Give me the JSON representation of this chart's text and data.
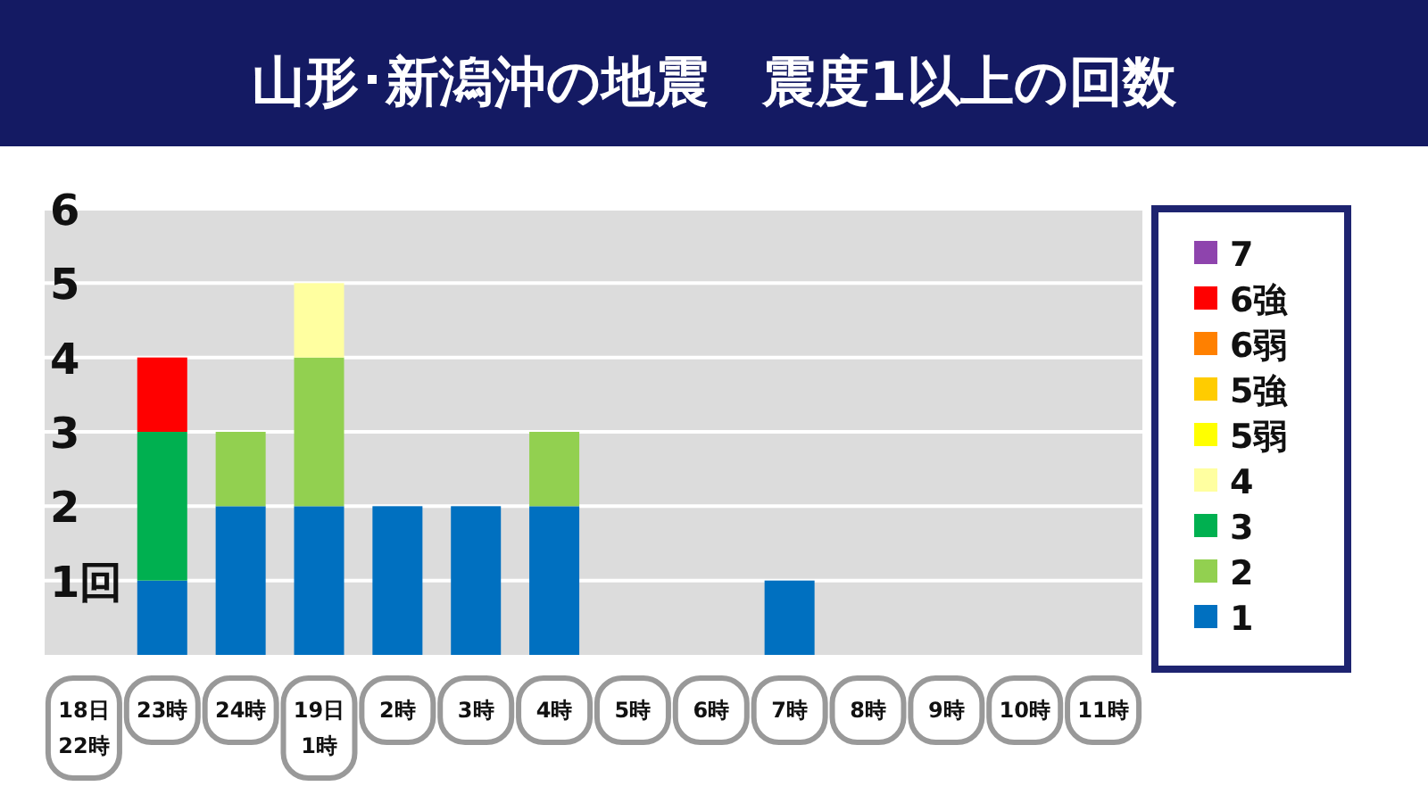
{
  "chart_data": {
    "type": "bar",
    "title": "山形･新潟沖の地震　震度1以上の回数",
    "stacked": true,
    "legend": "right",
    "grid": "y",
    "categories": [
      "18日\n22時",
      "23時",
      "24時",
      "19日\n1時",
      "2時",
      "3時",
      "4時",
      "5時",
      "6時",
      "7時",
      "8時",
      "9時",
      "10時",
      "11時"
    ],
    "ylim": [
      0,
      6
    ],
    "yticks": [
      {
        "value": 1,
        "label": "1回"
      },
      2,
      3,
      4,
      5,
      6
    ],
    "series": [
      {
        "name": "1",
        "color": "#0070c0",
        "values": [
          0,
          1,
          2,
          2,
          2,
          2,
          2,
          0,
          0,
          1,
          0,
          0,
          0,
          0
        ]
      },
      {
        "name": "2",
        "color": "#92d050",
        "values": [
          0,
          0,
          1,
          2,
          0,
          0,
          1,
          0,
          0,
          0,
          0,
          0,
          0,
          0
        ]
      },
      {
        "name": "3",
        "color": "#00b050",
        "values": [
          0,
          2,
          0,
          0,
          0,
          0,
          0,
          0,
          0,
          0,
          0,
          0,
          0,
          0
        ]
      },
      {
        "name": "4",
        "color": "#ffffa0",
        "values": [
          0,
          0,
          0,
          1,
          0,
          0,
          0,
          0,
          0,
          0,
          0,
          0,
          0,
          0
        ]
      },
      {
        "name": "5弱",
        "color": "#ffff00",
        "values": [
          0,
          0,
          0,
          0,
          0,
          0,
          0,
          0,
          0,
          0,
          0,
          0,
          0,
          0
        ]
      },
      {
        "name": "5強",
        "color": "#ffcc00",
        "values": [
          0,
          0,
          0,
          0,
          0,
          0,
          0,
          0,
          0,
          0,
          0,
          0,
          0,
          0
        ]
      },
      {
        "name": "6弱",
        "color": "#ff8000",
        "values": [
          0,
          0,
          0,
          0,
          0,
          0,
          0,
          0,
          0,
          0,
          0,
          0,
          0,
          0
        ]
      },
      {
        "name": "6強",
        "color": "#ff0000",
        "values": [
          0,
          1,
          0,
          0,
          0,
          0,
          0,
          0,
          0,
          0,
          0,
          0,
          0,
          0
        ]
      },
      {
        "name": "7",
        "color": "#8e44ad",
        "values": [
          0,
          0,
          0,
          0,
          0,
          0,
          0,
          0,
          0,
          0,
          0,
          0,
          0,
          0
        ]
      }
    ]
  }
}
